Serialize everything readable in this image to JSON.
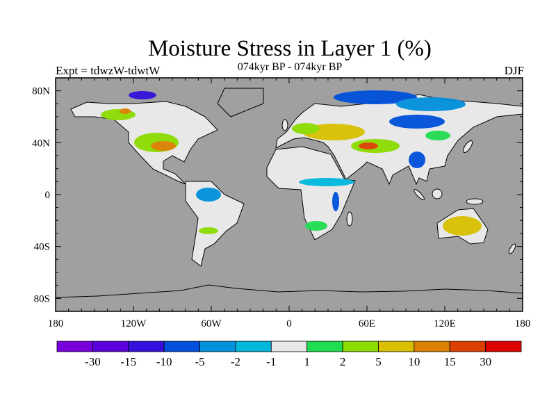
{
  "title": "Moisture Stress in Layer 1 (%)",
  "left_string": "Expt = tdwzW-tdwtW",
  "center_string": "074kyr BP - 074kyr BP",
  "right_string": "DJF",
  "map": {
    "projection": "cylindrical-equidistant",
    "lon_range": [
      -180,
      180
    ],
    "lat_range": [
      -90,
      90
    ],
    "land_color": "#e8e8e8",
    "ocean_color": "#a0a0a0",
    "x_ticks": [
      {
        "lon": -180,
        "label": "180"
      },
      {
        "lon": -120,
        "label": "120W"
      },
      {
        "lon": -60,
        "label": "60W"
      },
      {
        "lon": 0,
        "label": "0"
      },
      {
        "lon": 60,
        "label": "60E"
      },
      {
        "lon": 120,
        "label": "120E"
      },
      {
        "lon": 180,
        "label": "180"
      }
    ],
    "y_ticks": [
      {
        "lat": 80,
        "label": "80N"
      },
      {
        "lat": 40,
        "label": "40N"
      },
      {
        "lat": 0,
        "label": "0"
      },
      {
        "lat": -40,
        "label": "40S"
      },
      {
        "lat": -80,
        "label": "80S"
      }
    ]
  },
  "colorbar": {
    "colors": [
      "#7800dc",
      "#5a00dc",
      "#3510dc",
      "#0050dc",
      "#0090dc",
      "#00b8dc",
      "#e8e8e8",
      "#20dc50",
      "#8cdc00",
      "#d8c000",
      "#dc8000",
      "#dc4000",
      "#dc0000"
    ],
    "labels": [
      "-30",
      "-15",
      "-10",
      "-5",
      "-2",
      "-1",
      "1",
      "2",
      "5",
      "10",
      "15",
      "30"
    ]
  }
}
